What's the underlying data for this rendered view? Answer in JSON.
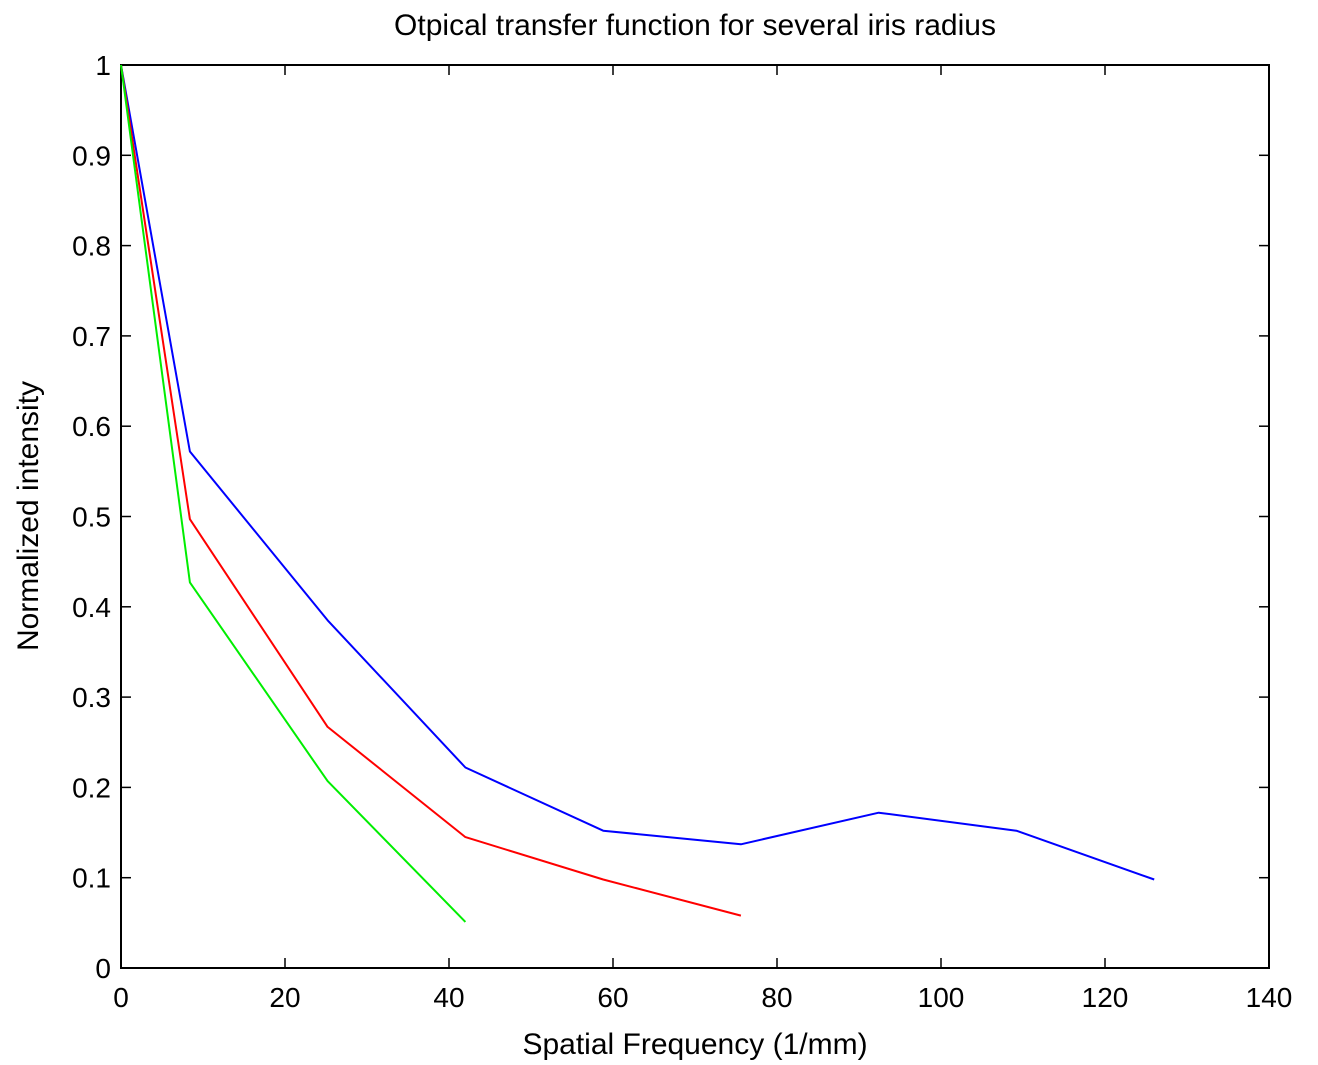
{
  "chart_data": {
    "type": "line",
    "title": "Otpical transfer function for several iris radius",
    "xlabel": "Spatial Frequency (1/mm)",
    "ylabel": "Normalized intensity",
    "xlim": [
      0,
      140
    ],
    "ylim": [
      0,
      1
    ],
    "xticks": [
      "0",
      "20",
      "40",
      "60",
      "80",
      "100",
      "120",
      "140"
    ],
    "yticks": [
      "0",
      "0.1",
      "0.2",
      "0.3",
      "0.4",
      "0.5",
      "0.6",
      "0.7",
      "0.8",
      "0.9",
      "1"
    ],
    "grid": false,
    "series": [
      {
        "color": "#0000ff",
        "x": [
          0,
          8.4,
          25.2,
          42.0,
          58.8,
          75.6,
          92.4,
          109.2,
          126.0
        ],
        "y": [
          1.0,
          0.572,
          0.385,
          0.222,
          0.152,
          0.137,
          0.172,
          0.152,
          0.098
        ]
      },
      {
        "color": "#ff0000",
        "x": [
          0,
          8.4,
          25.2,
          42.0,
          58.8,
          75.6
        ],
        "y": [
          1.0,
          0.497,
          0.267,
          0.145,
          0.098,
          0.058
        ]
      },
      {
        "color": "#00ee00",
        "x": [
          0,
          8.4,
          25.2,
          42.0
        ],
        "y": [
          1.0,
          0.427,
          0.207,
          0.051
        ]
      }
    ]
  }
}
